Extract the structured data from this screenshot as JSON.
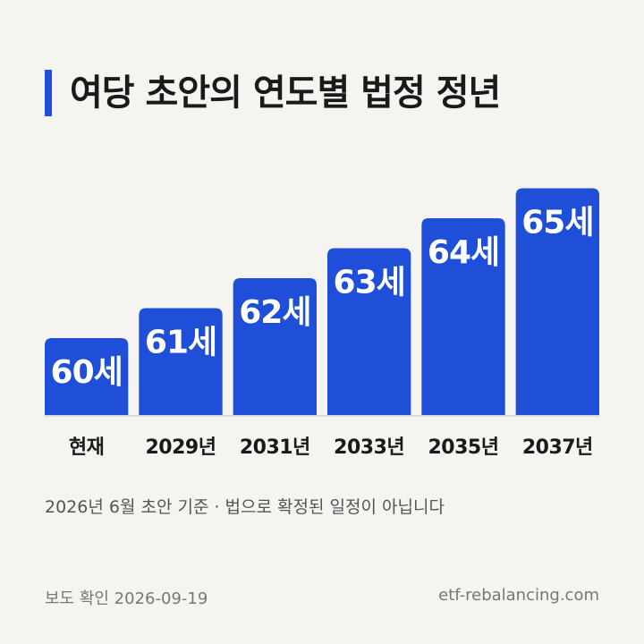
{
  "title": "여당 초안의 연도별 법정 정년",
  "note": "2026년 6월 초안 기준 · 법으로 확정된 일정이 아닙니다",
  "footer": {
    "left": "보도 확인 2026-09-19",
    "right": "etf-rebalancing.com"
  },
  "colors": {
    "bar": "#1f4fd8",
    "accent": "#1f4fd8",
    "baseline": "#dcdcdc"
  },
  "chart_data": {
    "type": "bar",
    "categories": [
      "현재",
      "2029년",
      "2031년",
      "2033년",
      "2035년",
      "2037년"
    ],
    "values": [
      60,
      61,
      62,
      63,
      64,
      65
    ],
    "data_labels": [
      "60세",
      "61세",
      "62세",
      "63세",
      "64세",
      "65세"
    ],
    "title": "여당 초안의 연도별 법정 정년",
    "xlabel": "",
    "ylabel": "",
    "grid": false,
    "legend": "none"
  }
}
